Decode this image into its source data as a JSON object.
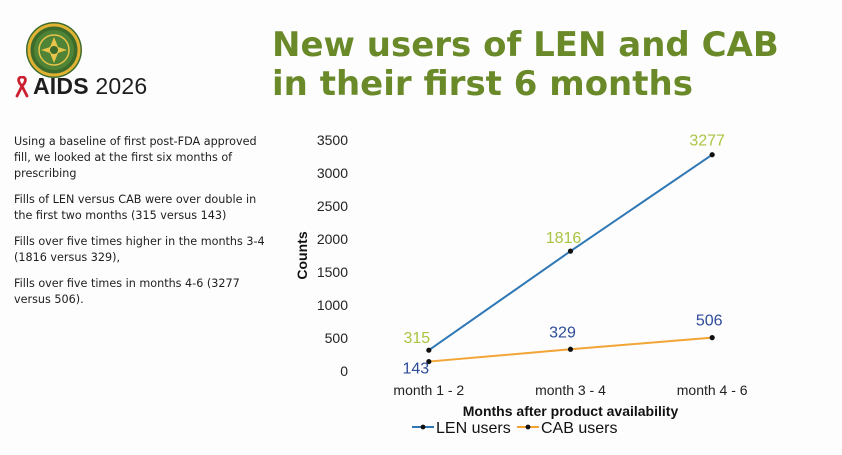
{
  "header": {
    "brand_prefix": "AIDS",
    "brand_year": "2026",
    "title_line1": "New users of LEN and CAB",
    "title_line2": "in their first 6 months"
  },
  "notes": [
    "Using a baseline of first post-FDA approved fill, we looked at the first six months of prescribing",
    "Fills of LEN versus CAB were over double in the first two months (315 versus 143)",
    "Fills over  five times higher in the months 3-4 (1816 versus 329),",
    "Fills over five times in months 4-6 (3277 versus 506)."
  ],
  "colors": {
    "title": "#6a8a2a",
    "len_line": "#2f78b5",
    "cab_line": "#f2a534",
    "len_label": "#a9c542",
    "cab_label": "#2e4b9a",
    "ribbon": "#cc1f2f"
  },
  "icons": {
    "seal": "emblem-seal-icon",
    "ribbon": "red-ribbon-icon"
  },
  "chart_data": {
    "type": "line",
    "categories": [
      "month 1 - 2",
      "month 3 - 4",
      "month 4 - 6"
    ],
    "series": [
      {
        "name": "LEN users",
        "values": [
          315,
          1816,
          3277
        ]
      },
      {
        "name": "CAB users",
        "values": [
          143,
          329,
          506
        ]
      }
    ],
    "title": "",
    "xlabel": "Months after product availability",
    "ylabel": "Counts",
    "ylim": [
      0,
      3500
    ],
    "yticks": [
      0,
      500,
      1000,
      1500,
      2000,
      2500,
      3000,
      3500
    ],
    "grid": false,
    "legend_position": "bottom",
    "data_labels": true
  }
}
